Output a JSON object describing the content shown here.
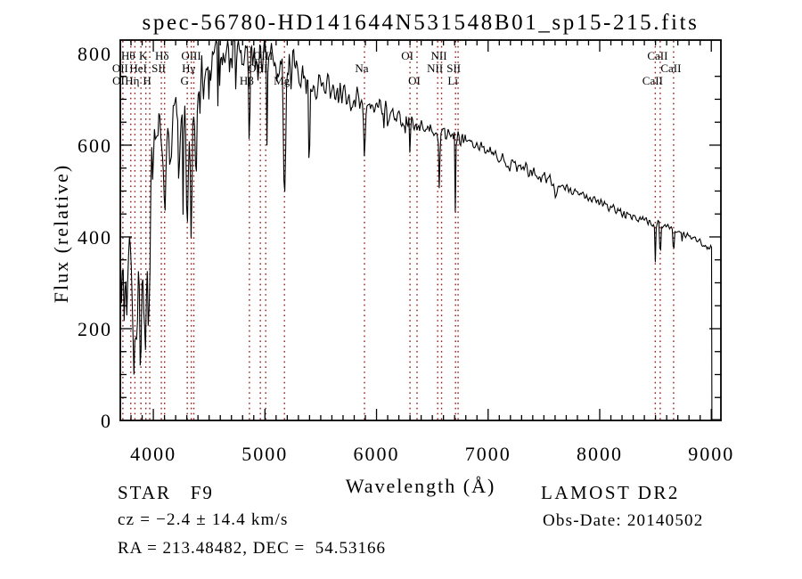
{
  "title": "spec-56780-HD141644N531548B01_sp15-215.fits",
  "annotations": {
    "class_line": "STAR   F9",
    "survey": "LAMOST DR2",
    "cz_line": "cz = −2.4 ± 14.4 km/s",
    "obs_date": "Obs-Date: 20140502",
    "ra_line": "RA = 213.48482, DEC =  54.53166"
  },
  "colors": {
    "background": "#ffffff",
    "spectrum_line": "#000000",
    "frame": "#000000",
    "line_marker": "#951b1b"
  },
  "chart_data": {
    "type": "line",
    "title": "spec-56780-HD141644N531548B01_sp15-215.fits",
    "xlabel": "Wavelength (Å)",
    "ylabel": "Flux (relative)",
    "xlim": [
      3704,
      9086
    ],
    "ylim": [
      0,
      829
    ],
    "x_major_ticks": [
      4000,
      5000,
      6000,
      7000,
      8000,
      9000
    ],
    "x_minor_step": 100,
    "y_major_ticks": [
      0,
      200,
      400,
      600,
      800
    ],
    "y_minor_step": 50,
    "grid": false,
    "legend": false,
    "continuum": [
      [
        3706,
        390
      ],
      [
        3730,
        330
      ],
      [
        3760,
        300
      ],
      [
        3790,
        350
      ],
      [
        3830,
        300
      ],
      [
        3870,
        280
      ],
      [
        3910,
        260
      ],
      [
        3940,
        330
      ],
      [
        3970,
        430
      ],
      [
        4000,
        590
      ],
      [
        4060,
        630
      ],
      [
        4150,
        630
      ],
      [
        4250,
        635
      ],
      [
        4350,
        660
      ],
      [
        4450,
        740
      ],
      [
        4550,
        790
      ],
      [
        4650,
        805
      ],
      [
        4750,
        808
      ],
      [
        4850,
        800
      ],
      [
        4950,
        790
      ],
      [
        5050,
        782
      ],
      [
        5150,
        768
      ],
      [
        5250,
        752
      ],
      [
        5350,
        742
      ],
      [
        5450,
        735
      ],
      [
        5550,
        726
      ],
      [
        5650,
        716
      ],
      [
        5750,
        706
      ],
      [
        5850,
        696
      ],
      [
        5950,
        686
      ],
      [
        6050,
        676
      ],
      [
        6150,
        666
      ],
      [
        6250,
        656
      ],
      [
        6350,
        648
      ],
      [
        6450,
        642
      ],
      [
        6550,
        636
      ],
      [
        6650,
        626
      ],
      [
        6750,
        616
      ],
      [
        6850,
        606
      ],
      [
        6950,
        596
      ],
      [
        7050,
        582
      ],
      [
        7150,
        568
      ],
      [
        7250,
        556
      ],
      [
        7350,
        546
      ],
      [
        7450,
        534
      ],
      [
        7550,
        523
      ],
      [
        7650,
        513
      ],
      [
        7750,
        501
      ],
      [
        7850,
        490
      ],
      [
        7950,
        479
      ],
      [
        8050,
        469
      ],
      [
        8150,
        459
      ],
      [
        8250,
        449
      ],
      [
        8350,
        439
      ],
      [
        8450,
        431
      ],
      [
        8550,
        426
      ],
      [
        8650,
        421
      ],
      [
        8750,
        406
      ],
      [
        8850,
        398
      ],
      [
        8950,
        381
      ],
      [
        9005,
        374
      ]
    ],
    "noise_regions": [
      {
        "from": 3704,
        "to": 3995,
        "amp": 130
      },
      {
        "from": 3995,
        "to": 4450,
        "amp": 60
      },
      {
        "from": 4450,
        "to": 5300,
        "amp": 45
      },
      {
        "from": 5300,
        "to": 5900,
        "amp": 30
      },
      {
        "from": 5900,
        "to": 6800,
        "amp": 18
      },
      {
        "from": 6800,
        "to": 7600,
        "amp": 12
      },
      {
        "from": 7600,
        "to": 8450,
        "amp": 9
      },
      {
        "from": 8450,
        "to": 9005,
        "amp": 7
      }
    ],
    "extra_dip_regions": [
      {
        "from": 3706,
        "to": 3995,
        "prob": 0.18,
        "max": 150
      },
      {
        "from": 4050,
        "to": 5600,
        "prob": 0.06,
        "max": 170
      },
      {
        "from": 5600,
        "to": 6450,
        "prob": 0.03,
        "max": 60
      }
    ],
    "absorption_lines": [
      {
        "wl": 3798,
        "depth": 120,
        "width": 8
      },
      {
        "wl": 3835,
        "depth": 160,
        "width": 8
      },
      {
        "wl": 3889,
        "depth": 140,
        "width": 8
      },
      {
        "wl": 3933,
        "depth": 200,
        "width": 9
      },
      {
        "wl": 3968,
        "depth": 180,
        "width": 9
      },
      {
        "wl": 4101,
        "depth": 210,
        "width": 11
      },
      {
        "wl": 4227,
        "depth": 110,
        "width": 6
      },
      {
        "wl": 4304,
        "depth": 235,
        "width": 13
      },
      {
        "wl": 4340,
        "depth": 200,
        "width": 9
      },
      {
        "wl": 4383,
        "depth": 130,
        "width": 7
      },
      {
        "wl": 4861,
        "depth": 200,
        "width": 9
      },
      {
        "wl": 5175,
        "depth": 255,
        "width": 13
      },
      {
        "wl": 5890,
        "depth": 118,
        "width": 11
      },
      {
        "wl": 6300,
        "depth": 28,
        "width": 6
      },
      {
        "wl": 6563,
        "depth": 128,
        "width": 7
      },
      {
        "wl": 6708,
        "depth": 235,
        "width": 4
      },
      {
        "wl": 7190,
        "depth": 22,
        "width": 12
      },
      {
        "wl": 7605,
        "depth": 28,
        "width": 14
      },
      {
        "wl": 8230,
        "depth": 20,
        "width": 8
      },
      {
        "wl": 8498,
        "depth": 80,
        "width": 5
      },
      {
        "wl": 8542,
        "depth": 112,
        "width": 5
      },
      {
        "wl": 8662,
        "depth": 82,
        "width": 5
      },
      {
        "wl": 8740,
        "depth": 25,
        "width": 5
      }
    ],
    "cutoff": {
      "wl": 9005,
      "flux_after": 2,
      "end": 9080
    },
    "marked_lines": [
      {
        "label": "Hθ",
        "wl": 3798,
        "row": 1
      },
      {
        "label": "K",
        "wl": 3933,
        "row": 1
      },
      {
        "label": "Hδ",
        "wl": 4101,
        "row": 1
      },
      {
        "label": "OIII",
        "wl": 4363,
        "row": 1
      },
      {
        "label": "OIII",
        "wl": 5007,
        "row": 1
      },
      {
        "label": "OI",
        "wl": 6300,
        "row": 1
      },
      {
        "label": "NII",
        "wl": 6583,
        "row": 1
      },
      {
        "label": "CaII",
        "wl": 8542,
        "row": 1
      },
      {
        "label": "OII",
        "wl": 3727,
        "row": 2
      },
      {
        "label": "HeI",
        "wl": 3889,
        "row": 2
      },
      {
        "label": "SII",
        "wl": 4072,
        "row": 2
      },
      {
        "label": "Hγ",
        "wl": 4340,
        "row": 2
      },
      {
        "label": "OIII",
        "wl": 4959,
        "row": 2
      },
      {
        "label": "Na",
        "wl": 5892,
        "row": 2
      },
      {
        "label": "NII",
        "wl": 6548,
        "row": 2
      },
      {
        "label": "SII",
        "wl": 6716,
        "row": 2
      },
      {
        "label": "CaII",
        "wl": 8662,
        "row": 2
      },
      {
        "label": "OI",
        "wl": 3712,
        "row": 3
      },
      {
        "label": "Hη",
        "wl": 3835,
        "row": 3
      },
      {
        "label": "H",
        "wl": 3968,
        "row": 3
      },
      {
        "label": "G",
        "wl": 4304,
        "row": 3
      },
      {
        "label": "Hβ",
        "wl": 4861,
        "row": 3
      },
      {
        "label": "Mg",
        "wl": 5175,
        "row": 3
      },
      {
        "label": "OI",
        "wl": 6363,
        "row": 3
      },
      {
        "label": "Li",
        "wl": 6708,
        "row": 3
      },
      {
        "label": "CaII",
        "wl": 8498,
        "row": 3
      }
    ],
    "dotted_lines": [
      3727,
      3798,
      3835,
      3889,
      3933,
      3968,
      4072,
      4101,
      4304,
      4340,
      4363,
      4861,
      4959,
      5007,
      5175,
      5892,
      6300,
      6363,
      6548,
      6583,
      6708,
      6731,
      8498,
      8542,
      8662
    ]
  }
}
